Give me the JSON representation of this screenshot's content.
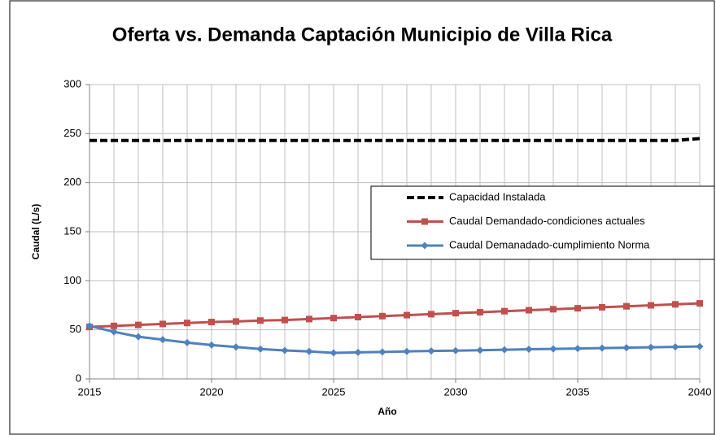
{
  "chart_data": {
    "type": "line",
    "title": "Oferta vs. Demanda Captación Municipio de Villa Rica",
    "x_label": "Año",
    "y_label": "Caudal (L/s)",
    "x": [
      2015,
      2016,
      2017,
      2018,
      2019,
      2020,
      2021,
      2022,
      2023,
      2024,
      2025,
      2026,
      2027,
      2028,
      2029,
      2030,
      2031,
      2032,
      2033,
      2034,
      2035,
      2036,
      2037,
      2038,
      2039,
      2040
    ],
    "series": [
      {
        "name": "Capacidad Instalada",
        "color": "#000000",
        "marker": "none",
        "dash": true,
        "values": [
          243,
          243,
          243,
          243,
          243,
          243,
          243,
          243,
          243,
          243,
          243,
          243,
          243,
          243,
          243,
          243,
          243,
          243,
          243,
          243,
          243,
          243,
          243,
          243,
          243,
          245
        ]
      },
      {
        "name": "Caudal Demandado-condiciones actuales",
        "color": "#c0504d",
        "marker": "square",
        "dash": false,
        "values": [
          53,
          54,
          55,
          56,
          57,
          58,
          58.5,
          59.5,
          60,
          61,
          62,
          63,
          64,
          65,
          66,
          67,
          68,
          69,
          70,
          71,
          72,
          73,
          74,
          75,
          76,
          77
        ]
      },
      {
        "name": "Caudal Demanadado-cumplimiento Norma",
        "color": "#4f81bd",
        "marker": "diamond",
        "dash": false,
        "values": [
          54,
          48,
          43,
          40,
          37,
          34.5,
          32.5,
          30.5,
          29,
          28,
          26.5,
          27,
          27.5,
          28,
          28.5,
          28.8,
          29.2,
          29.7,
          30.2,
          30.6,
          31,
          31.4,
          31.8,
          32.2,
          32.6,
          33
        ]
      }
    ],
    "xlim": [
      2015,
      2040
    ],
    "xticks": [
      2015,
      2020,
      2025,
      2030,
      2035,
      2040
    ],
    "ylim": [
      0,
      300
    ],
    "yticks": [
      0,
      50,
      100,
      150,
      200,
      250,
      300
    ],
    "grid": true,
    "legend": "right"
  }
}
